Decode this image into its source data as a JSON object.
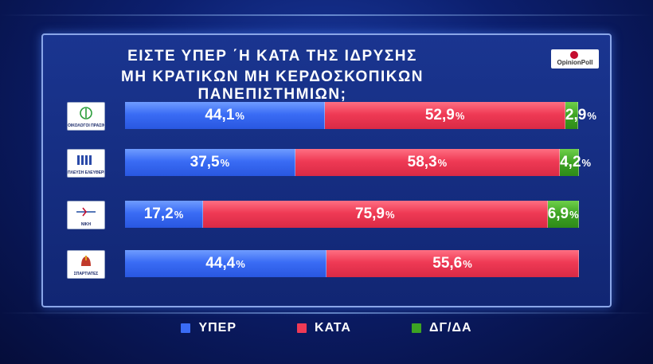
{
  "title_lines": [
    "ΕΙΣΤΕ ΥΠΕΡ ΄Η ΚΑΤΑ ΤΗΣ ΙΔΡΥΣΗΣ",
    "ΜΗ ΚΡΑΤΙΚΩΝ ΜΗ ΚΕΡΔΟΣΚΟΠΙΚΩΝ ΠΑΝΕΠΙΣΤΗΜΙΩΝ;"
  ],
  "pollster_logo": "OpinionPoll",
  "chart_data": {
    "type": "bar",
    "stacked": true,
    "orientation": "horizontal",
    "categories": [
      "ΟΙΚΟΛΟΓΟΙ ΠΡΑΣΙΝΟΙ",
      "ΠΛΕΥΣΗ ΕΛΕΥΘΕΡΙΑΣ",
      "ΝΙΚΗ",
      "ΣΠΑΡΤΙΑΤΕΣ"
    ],
    "series": [
      {
        "name": "ΥΠΕΡ",
        "color": "#3a6cf5",
        "values": [
          44.1,
          37.5,
          17.2,
          44.4
        ],
        "labels": [
          "44,1",
          "37,5",
          "17,2",
          "44,4"
        ]
      },
      {
        "name": "ΚΑΤΑ",
        "color": "#ef3a55",
        "values": [
          52.9,
          58.3,
          75.9,
          55.6
        ],
        "labels": [
          "52,9",
          "58,3",
          "75,9",
          "55,6"
        ]
      },
      {
        "name": "ΔΓ/ΔΑ",
        "color": "#3da323",
        "values": [
          2.9,
          4.2,
          6.9,
          0
        ],
        "labels": [
          "2,9",
          "4,2",
          "6,9",
          ""
        ]
      }
    ],
    "unit": "%",
    "xlim": [
      0,
      100
    ],
    "legend_position": "bottom"
  },
  "party_logo_labels": [
    "ΟΙΚΟΛΟΓΟΙ ΠΡΑΣΙΝΟΙ",
    "ΠΛΕΥΣΗ ΕΛΕΥΘΕΡΙΑΣ",
    "ΝΙΚΗ",
    "ΣΠΑΡΤΙΑΤΕΣ"
  ],
  "legend": [
    {
      "label": "ΥΠΕΡ",
      "color": "#3a6cf5"
    },
    {
      "label": "ΚΑΤΑ",
      "color": "#ef3a55"
    },
    {
      "label": "ΔΓ/ΔΑ",
      "color": "#3da323"
    }
  ]
}
